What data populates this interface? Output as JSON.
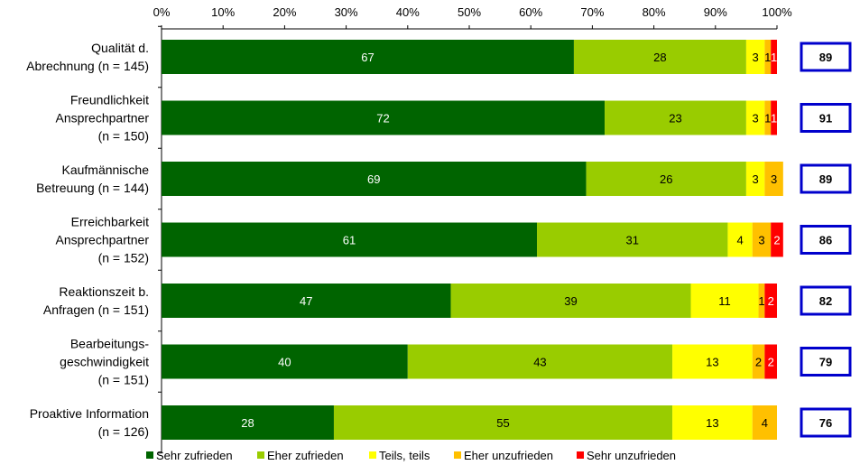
{
  "chart_data": {
    "type": "bar",
    "orientation": "horizontal",
    "stacked": true,
    "xlim": [
      0,
      100
    ],
    "x_tick_labels": [
      "0%",
      "10%",
      "20%",
      "30%",
      "40%",
      "50%",
      "60%",
      "70%",
      "80%",
      "90%",
      "100%"
    ],
    "axis_position": "top",
    "grid": false,
    "legend_position": "bottom",
    "categories": [
      [
        "Qualität d.",
        "Abrechnung (n = 145)"
      ],
      [
        "Freundlichkeit",
        "Ansprechpartner",
        "(n = 150)"
      ],
      [
        "Kaufmännische",
        "Betreuung (n = 144)"
      ],
      [
        "Erreichbarkeit",
        "Ansprechpartner",
        "(n = 152)"
      ],
      [
        "Reaktionszeit b.",
        "Anfragen (n = 151)"
      ],
      [
        "Bearbeitungs-",
        "geschwindigkeit",
        "(n = 151)"
      ],
      [
        "Proaktive Information",
        "(n = 126)"
      ]
    ],
    "series": [
      {
        "name": "Sehr zufrieden",
        "color": "#006400",
        "label_color": "#ffffff",
        "values": [
          67,
          72,
          69,
          61,
          47,
          40,
          28
        ]
      },
      {
        "name": "Eher zufrieden",
        "color": "#99CC00",
        "label_color": "#000000",
        "values": [
          28,
          23,
          26,
          31,
          39,
          43,
          55
        ]
      },
      {
        "name": "Teils, teils",
        "color": "#FFFF00",
        "label_color": "#000000",
        "values": [
          3,
          3,
          3,
          4,
          11,
          13,
          13
        ]
      },
      {
        "name": "Eher unzufrieden",
        "color": "#FFC000",
        "label_color": "#000000",
        "values": [
          1,
          1,
          3,
          3,
          1,
          2,
          4
        ]
      },
      {
        "name": "Sehr unzufrieden",
        "color": "#FF0000",
        "label_color": "#ffffff",
        "values": [
          1,
          1,
          0,
          2,
          2,
          2,
          0
        ]
      }
    ],
    "scores": [
      89,
      91,
      89,
      86,
      82,
      79,
      76
    ],
    "score_box_color": "#0000CC"
  }
}
